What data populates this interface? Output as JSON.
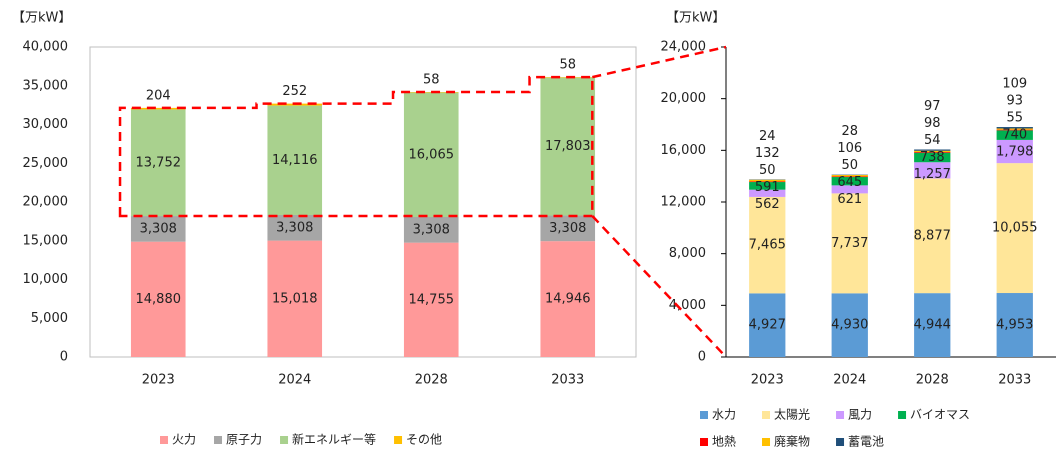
{
  "chart_data": [
    {
      "type": "bar",
      "stacked": true,
      "unit": "【万kW】",
      "categories": [
        "2023",
        "2024",
        "2028",
        "2033"
      ],
      "series": [
        {
          "name": "火力",
          "color": "#ff9999",
          "values": [
            14880,
            15018,
            14755,
            14946
          ],
          "value_labels": [
            "14,880",
            "15,018",
            "14,755",
            "14,946"
          ]
        },
        {
          "name": "原子力",
          "color": "#a6a6a6",
          "values": [
            3308,
            3308,
            3308,
            3308
          ],
          "value_labels": [
            "3,308",
            "3,308",
            "3,308",
            "3,308"
          ]
        },
        {
          "name": "新エネルギー等",
          "color": "#a9d18e",
          "values": [
            13752,
            14116,
            16065,
            17803
          ],
          "value_labels": [
            "13,752",
            "14,116",
            "16,065",
            "17,803"
          ]
        },
        {
          "name": "その他",
          "color": "#ffc000",
          "values": [
            204,
            252,
            58,
            58
          ]
        }
      ],
      "ylim": [
        0,
        40000
      ],
      "yticks": [
        0,
        {
          "value": 5000,
          "label": "5,000"
        },
        {
          "value": 10000,
          "label": "10,000"
        },
        {
          "value": 15000,
          "label": "15,000"
        },
        {
          "value": 20000,
          "label": "20,000"
        },
        {
          "value": 25000,
          "label": "25,000"
        },
        {
          "value": 30000,
          "label": "30,000"
        },
        {
          "value": 35000,
          "label": "35,000"
        },
        {
          "value": 40000,
          "label": "40,000"
        }
      ],
      "grid": false,
      "legend": "bottom"
    },
    {
      "type": "bar",
      "stacked": true,
      "unit": "【万kW】",
      "categories": [
        "2023",
        "2024",
        "2028",
        "2033"
      ],
      "series": [
        {
          "name": "水力",
          "color": "#5b9bd5",
          "values": [
            4927,
            4930,
            4944,
            4953
          ],
          "value_labels": [
            "4,927",
            "4,930",
            "4,944",
            "4,953"
          ]
        },
        {
          "name": "太陽光",
          "color": "#ffe699",
          "values": [
            7465,
            7737,
            8877,
            10055
          ],
          "value_labels": [
            "7,465",
            "7,737",
            "8,877",
            "10,055"
          ]
        },
        {
          "name": "風力",
          "color": "#cc99ff",
          "values": [
            562,
            621,
            1257,
            1798
          ],
          "value_labels": [
            "562",
            "621",
            "1,257",
            "1,798"
          ]
        },
        {
          "name": "バイオマス",
          "color": "#00b050",
          "values": [
            591,
            645,
            738,
            740
          ]
        },
        {
          "name": "地熱",
          "color": "#ff0000",
          "values": [
            50,
            50,
            54,
            55
          ]
        },
        {
          "name": "廃棄物",
          "color": "#ffc000",
          "values": [
            132,
            106,
            98,
            93
          ]
        },
        {
          "name": "蓄電池",
          "color": "#1f4e79",
          "values": [
            24,
            28,
            97,
            109
          ]
        }
      ],
      "ylim": [
        0,
        24000
      ],
      "yticks": [
        0,
        {
          "value": 4000,
          "label": "4,000"
        },
        {
          "value": 8000,
          "label": "8,000"
        },
        {
          "value": 12000,
          "label": "12,000"
        },
        {
          "value": 16000,
          "label": "16,000"
        },
        {
          "value": 20000,
          "label": "20,000"
        },
        {
          "value": 24000,
          "label": "24,000"
        }
      ],
      "grid": false,
      "legend": "bottom"
    }
  ]
}
